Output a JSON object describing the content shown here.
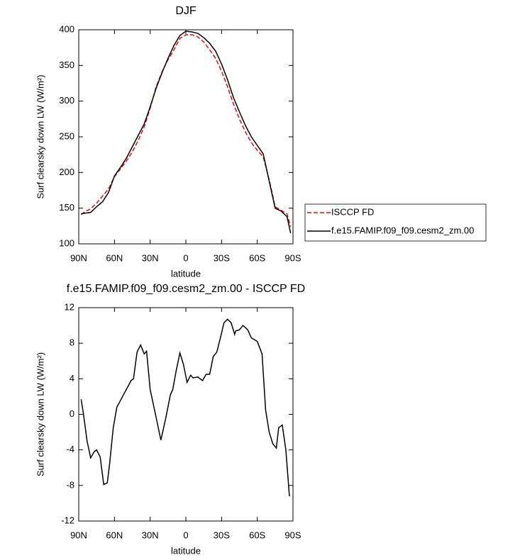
{
  "chart_data": [
    {
      "type": "line",
      "title": "DJF",
      "xlabel": "latitude",
      "ylabel": "Surf clearsky down LW (W/m²)",
      "x": [
        88,
        85,
        80,
        75,
        70,
        65,
        60,
        55,
        50,
        45,
        40,
        35,
        30,
        25,
        20,
        15,
        10,
        5,
        0,
        -5,
        -10,
        -15,
        -20,
        -25,
        -30,
        -35,
        -40,
        -45,
        -50,
        -55,
        -60,
        -65,
        -70,
        -75,
        -80,
        -85,
        -88
      ],
      "series": [
        {
          "name": "ISCCP FD",
          "color": "#ff0000",
          "dashed": true,
          "values": [
            141,
            145,
            149,
            157,
            167,
            177,
            194,
            205,
            216,
            229,
            245,
            264,
            290,
            320,
            341,
            358,
            372,
            388,
            393,
            393,
            390,
            383,
            372,
            360,
            342,
            320,
            296,
            275,
            257,
            242,
            231,
            222,
            190,
            152,
            147,
            142,
            124
          ]
        },
        {
          "name": "f.e15.FAMIP.f09_f09.cesm2_zm.00",
          "color": "#000000",
          "dashed": false,
          "values": [
            142,
            143,
            144,
            152,
            159,
            172,
            195,
            207,
            220,
            236,
            252,
            268,
            292,
            318,
            340,
            360,
            378,
            392,
            398,
            397,
            395,
            389,
            381,
            370,
            352,
            330,
            305,
            285,
            266,
            250,
            238,
            226,
            188,
            150,
            146,
            138,
            115
          ]
        }
      ],
      "xlim": [
        90,
        -90
      ],
      "xticks": [
        {
          "value": 90,
          "label": "90N"
        },
        {
          "value": 60,
          "label": "60N"
        },
        {
          "value": 30,
          "label": "30N"
        },
        0,
        {
          "value": -30,
          "label": "30S"
        },
        {
          "value": -60,
          "label": "60S"
        },
        {
          "value": -90,
          "label": "90S"
        }
      ],
      "ylim": [
        100,
        400
      ],
      "yticks": [
        100,
        150,
        200,
        250,
        300,
        350,
        400
      ],
      "legend": "outside-right"
    },
    {
      "type": "line",
      "title": "f.e15.FAMIP.f09_f09.cesm2_zm.00 - ISCCP FD",
      "xlabel": "latitude",
      "ylabel": "Surf clearsky down LW (W/m²)",
      "x": [
        88,
        86,
        83,
        80,
        77,
        75,
        72,
        69,
        66,
        64,
        61,
        58,
        54,
        50,
        46,
        44,
        41,
        38,
        35,
        33,
        30,
        26,
        21,
        17,
        13,
        11,
        8,
        5,
        2,
        -1,
        -4,
        -6,
        -10,
        -14,
        -17,
        -20,
        -23,
        -26,
        -29,
        -32,
        -35,
        -38,
        -41,
        -42,
        -45,
        -48,
        -52,
        -55,
        -60,
        -64,
        -67,
        -70,
        -73,
        -76,
        -78,
        -81,
        -84,
        -87
      ],
      "series": [
        {
          "color": "#000000",
          "dashed": false,
          "values": [
            1.7,
            0,
            -3,
            -4.9,
            -4.2,
            -4,
            -4.8,
            -7.9,
            -7.7,
            -5.5,
            -1.5,
            0.8,
            1.8,
            2.8,
            3.8,
            4,
            7,
            7.8,
            6.8,
            7.1,
            2.8,
            0.3,
            -2.9,
            -0.5,
            2.2,
            2.8,
            5,
            6.9,
            5.6,
            3.6,
            4.4,
            4.1,
            4.2,
            3.8,
            4.5,
            4.5,
            6.5,
            7,
            8.6,
            10.3,
            10.7,
            10.3,
            9,
            9.4,
            9.5,
            10,
            9.5,
            8.6,
            8.2,
            6.8,
            0.5,
            -2,
            -3.3,
            -3.8,
            -1.5,
            -1.2,
            -4,
            -9.2
          ]
        }
      ],
      "xlim": [
        90,
        -90
      ],
      "xticks": [
        {
          "value": 90,
          "label": "90N"
        },
        {
          "value": 60,
          "label": "60N"
        },
        {
          "value": 30,
          "label": "30N"
        },
        0,
        {
          "value": -30,
          "label": "30S"
        },
        {
          "value": -60,
          "label": "60S"
        },
        {
          "value": -90,
          "label": "90S"
        }
      ],
      "ylim": [
        -12,
        12
      ],
      "yticks": [
        -12,
        -8,
        -4,
        0,
        4,
        8,
        12
      ]
    }
  ]
}
